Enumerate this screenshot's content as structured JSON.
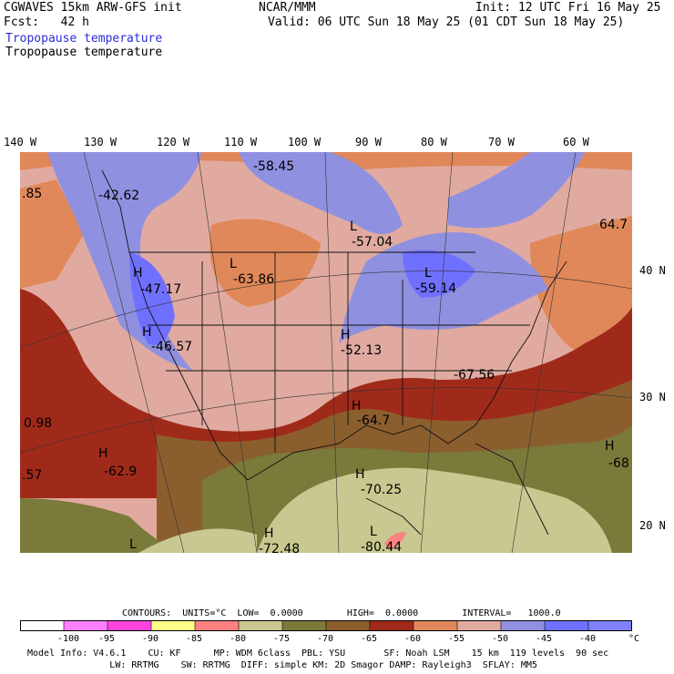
{
  "header": {
    "model": "CGWAVES 15km ARW-GFS init",
    "source": "NCAR/MMM",
    "init": "Init: 12 UTC Fri 16 May 25",
    "fcst": "Fcst:   42 h",
    "valid": "Valid: 06 UTC Sun 18 May 25 (01 CDT Sun 18 May 25)",
    "field_blue": "Tropopause temperature",
    "field_black": "Tropopause temperature"
  },
  "lon_labels": [
    "140 W",
    "130 W",
    "120 W",
    "110 W",
    "100 W",
    "90 W",
    "80 W",
    "70 W",
    "60 W"
  ],
  "lat_labels": [
    "40 N",
    "30 N",
    "20 N"
  ],
  "map_labels": [
    {
      "t": "-58.45"
    },
    {
      "t": ".85"
    },
    {
      "t": "-42.62"
    },
    {
      "t": "L"
    },
    {
      "t": "-57.04"
    },
    {
      "t": "64.7"
    },
    {
      "t": "H"
    },
    {
      "t": "L"
    },
    {
      "t": "-47.17"
    },
    {
      "t": "-63.86"
    },
    {
      "t": "L"
    },
    {
      "t": "-59.14"
    },
    {
      "t": "H"
    },
    {
      "t": "-46.57"
    },
    {
      "t": "H"
    },
    {
      "t": "-52.13"
    },
    {
      "t": "-67.56"
    },
    {
      "t": "H"
    },
    {
      "t": "0.98"
    },
    {
      "t": "-64.7"
    },
    {
      "t": "H"
    },
    {
      "t": ".57"
    },
    {
      "t": "-62.9"
    },
    {
      "t": "H"
    },
    {
      "t": "-68"
    },
    {
      "t": "H"
    },
    {
      "t": "-70.25"
    },
    {
      "t": "H"
    },
    {
      "t": "L"
    },
    {
      "t": "L"
    },
    {
      "t": "-72.48"
    },
    {
      "t": "-80.44"
    }
  ],
  "contours": {
    "text": "CONTOURS:  UNITS=°C  LOW=  0.0000        HIGH=  0.0000        INTERVAL=   1000.0"
  },
  "colorbar": {
    "colors": [
      "#ffffff",
      "#ff80ff",
      "#ff44dd",
      "#ffff88",
      "#ff8080",
      "#c8c890",
      "#7a7a3a",
      "#8b5e2e",
      "#a02a1a",
      "#e0885a",
      "#e0aaa0",
      "#9090e0",
      "#7070ff",
      "#8080ff"
    ],
    "ticks": [
      "-100",
      "-95",
      "-90",
      "-85",
      "-80",
      "-75",
      "-70",
      "-65",
      "-60",
      "-55",
      "-50",
      "-45",
      "-40",
      "°C"
    ]
  },
  "model_info": {
    "line1": "Model Info: V4.6.1    CU: KF      MP: WDM 6class  PBL: YSU       SF: Noah LSM    15 km  119 levels  90 sec",
    "line2": "               LW: RRTMG    SW: RRTMG  DIFF: simple KM: 2D Smagor DAMP: Rayleigh3  SFLAY: MM5"
  }
}
